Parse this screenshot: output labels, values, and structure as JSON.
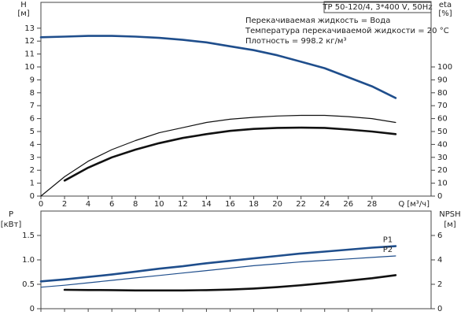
{
  "chart_data": [
    {
      "type": "line",
      "info": [
        "TP 50-120/4, 3*400 V, 50Hz",
        "Перекачиваемая жидкость = Вода",
        "Температура перекачиваемой жидкости = 20 °C",
        "Плотность = 998.2 кг/м³"
      ],
      "ylabel": "H",
      "yunit": "[м]",
      "y2label": "eta",
      "y2unit": "[%]",
      "xlabel": "Q [м³/ч]",
      "x": [
        0,
        2,
        4,
        6,
        8,
        10,
        12,
        14,
        16,
        18,
        20,
        22,
        24,
        26,
        28,
        30
      ],
      "xlim": [
        0,
        33
      ],
      "xticks": [
        0,
        2,
        4,
        6,
        8,
        10,
        12,
        14,
        16,
        18,
        20,
        22,
        24,
        26,
        28
      ],
      "ylim": [
        0,
        15
      ],
      "yticks": [
        0,
        1,
        2,
        3,
        4,
        5,
        6,
        7,
        8,
        9,
        10,
        11,
        12,
        13
      ],
      "y2lim": [
        0,
        150
      ],
      "y2ticks": [
        0,
        10,
        20,
        30,
        40,
        50,
        60,
        70,
        80,
        90,
        100
      ],
      "show_xtick_labels": true,
      "grid": false,
      "series": [
        {
          "color": "#1f4e8c",
          "line_style": "thick",
          "values": [
            12.3,
            12.35,
            12.4,
            12.4,
            12.35,
            12.25,
            12.1,
            11.9,
            11.6,
            11.3,
            10.9,
            10.4,
            9.9,
            9.2,
            8.5,
            7.6
          ]
        },
        {
          "color": "#111111",
          "line_style": "thin",
          "axis": "y2",
          "values": [
            0,
            15,
            27,
            36,
            43,
            49,
            53,
            57,
            59.5,
            61,
            62,
            62.5,
            62.5,
            61.5,
            60,
            57
          ]
        },
        {
          "color": "#111111",
          "line_style": "thick",
          "axis": "y2",
          "values": [
            null,
            12,
            22,
            30,
            36,
            41,
            45,
            48,
            50.5,
            52,
            52.8,
            53,
            52.8,
            51.5,
            50,
            48
          ]
        }
      ]
    },
    {
      "type": "line",
      "ylabel": "P",
      "yunit": "[кВт]",
      "y2label": "NPSH",
      "y2unit": "[м]",
      "x": [
        0,
        2,
        4,
        6,
        8,
        10,
        12,
        14,
        16,
        18,
        20,
        22,
        24,
        26,
        28,
        30
      ],
      "xlim": [
        0,
        33
      ],
      "xticks": [
        0,
        2,
        4,
        6,
        8,
        10,
        12,
        14,
        16,
        18,
        20,
        22,
        24,
        26,
        28
      ],
      "ylim": [
        0,
        2
      ],
      "yticks": [
        0,
        0.5,
        {
          "value": 1,
          "label": "1.0"
        },
        1.5
      ],
      "y2lim": [
        0,
        8
      ],
      "y2ticks": [
        0,
        2,
        4,
        6
      ],
      "show_xtick_labels": false,
      "grid": false,
      "series": [
        {
          "name": "P1",
          "color": "#1f4e8c",
          "line_style": "thick",
          "values": [
            0.56,
            0.6,
            0.65,
            0.7,
            0.76,
            0.82,
            0.87,
            0.93,
            0.98,
            1.03,
            1.08,
            1.13,
            1.17,
            1.21,
            1.25,
            1.28
          ]
        },
        {
          "name": "P2",
          "color": "#1f4e8c",
          "line_style": "thin",
          "values": [
            0.44,
            0.48,
            0.53,
            0.58,
            0.63,
            0.68,
            0.73,
            0.78,
            0.83,
            0.88,
            0.92,
            0.96,
            0.99,
            1.02,
            1.05,
            1.08
          ]
        },
        {
          "color": "#111111",
          "line_style": "thick",
          "axis": "y2",
          "values": [
            null,
            1.55,
            1.53,
            1.52,
            1.5,
            1.5,
            1.5,
            1.52,
            1.57,
            1.65,
            1.77,
            1.92,
            2.1,
            2.3,
            2.5,
            2.75
          ]
        }
      ]
    }
  ]
}
